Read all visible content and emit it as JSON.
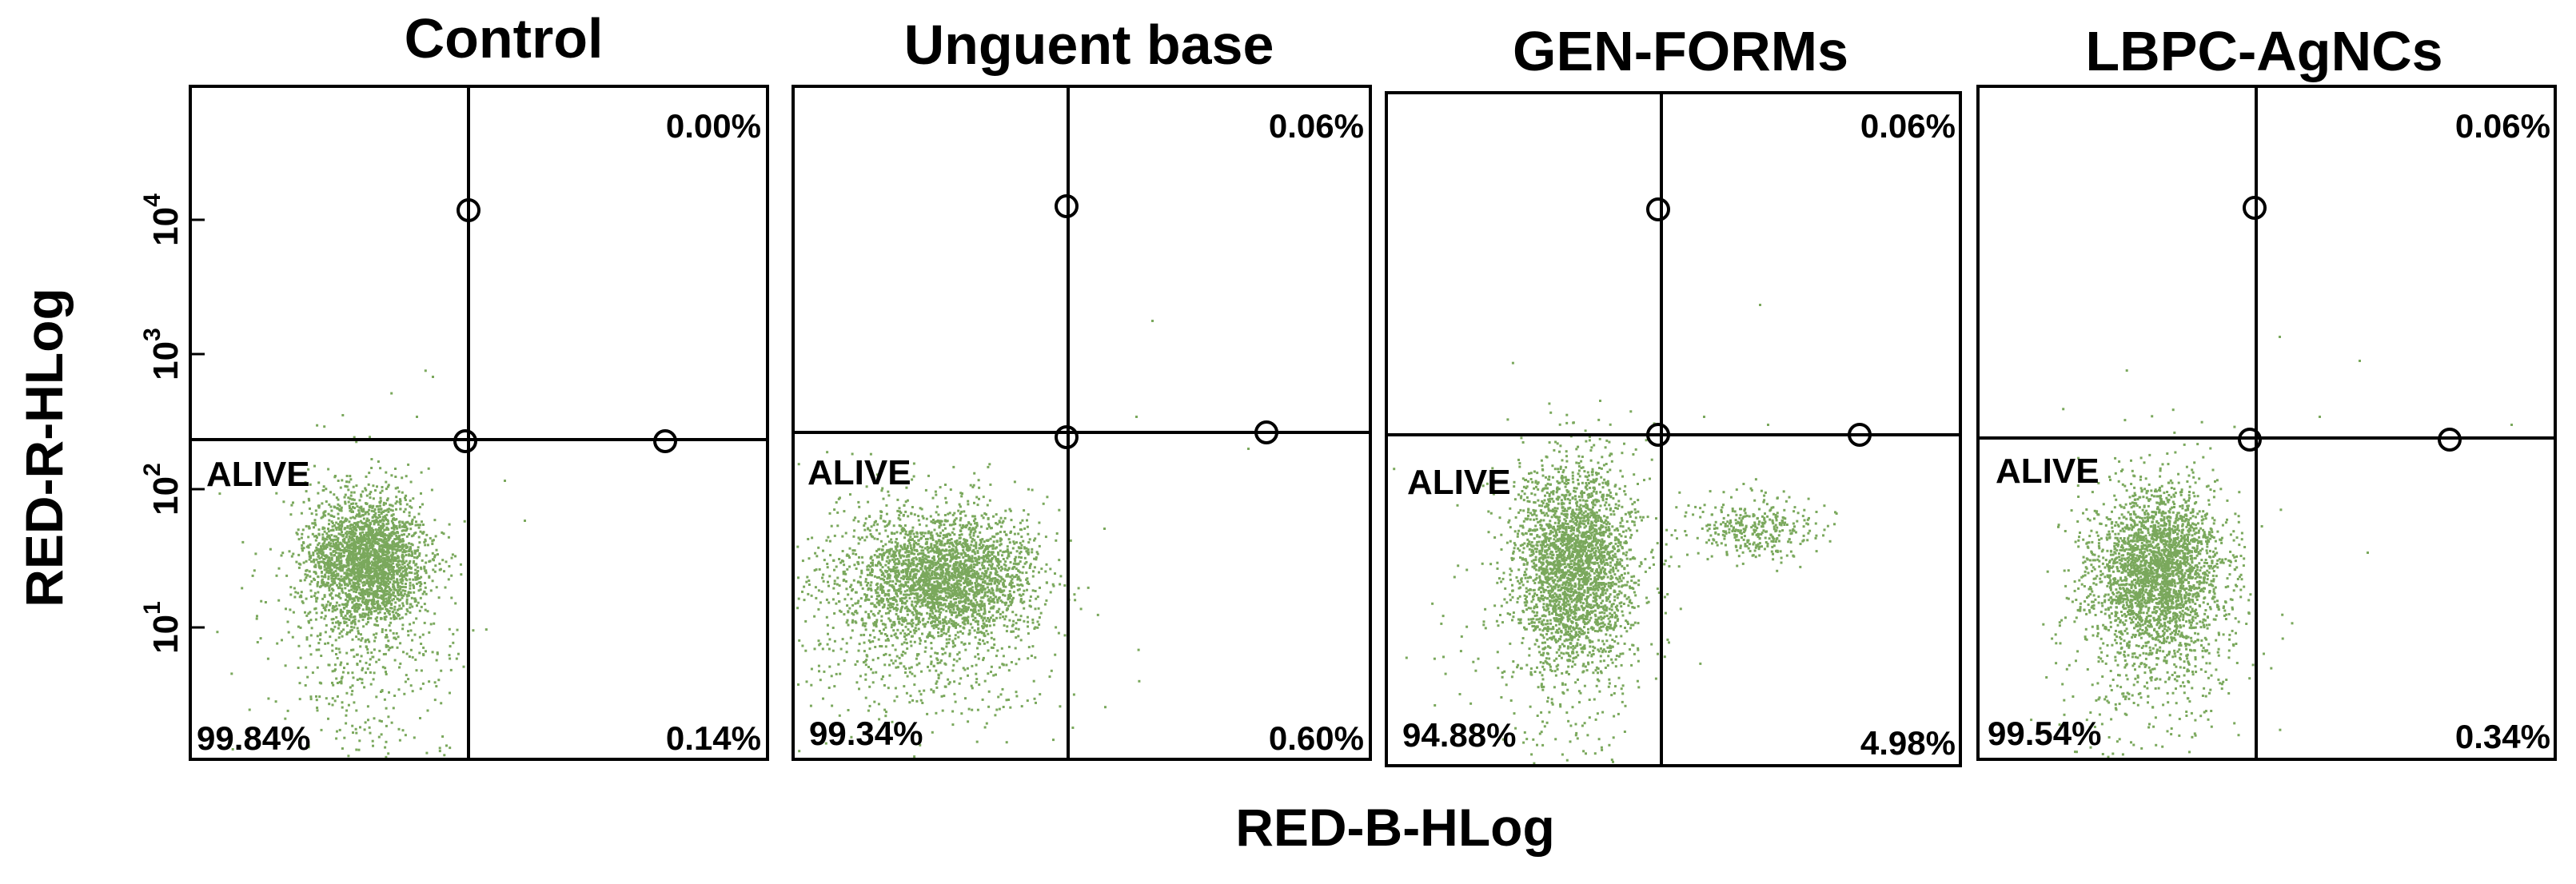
{
  "chart_data": {
    "type": "scatter",
    "xlabel": "RED-B-HLog",
    "ylabel": "RED-R-HLog",
    "y_scale": "log",
    "y_ticks": [
      {
        "base": "10",
        "exp": "1",
        "value": 10
      },
      {
        "base": "10",
        "exp": "2",
        "value": 100
      },
      {
        "base": "10",
        "exp": "3",
        "value": 1000
      },
      {
        "base": "10",
        "exp": "4",
        "value": 10000
      }
    ],
    "point_color": "#7aa85c",
    "panels": [
      {
        "title": "Control",
        "gate_label": "ALIVE",
        "quadrants": {
          "upper_right": "0.00%",
          "lower_left": "99.84%",
          "lower_right": "0.14%"
        }
      },
      {
        "title": "Unguent base",
        "gate_label": "ALIVE",
        "quadrants": {
          "upper_right": "0.06%",
          "lower_left": "99.34%",
          "lower_right": "0.60%"
        }
      },
      {
        "title": "GEN-FORMs",
        "gate_label": "ALIVE",
        "quadrants": {
          "upper_right": "0.06%",
          "lower_left": "94.88%",
          "lower_right": "4.98%"
        }
      },
      {
        "title": "LBPC-AgNCs",
        "gate_label": "ALIVE",
        "quadrants": {
          "upper_right": "0.06%",
          "lower_left": "99.54%",
          "lower_right": "0.34%"
        }
      }
    ]
  }
}
